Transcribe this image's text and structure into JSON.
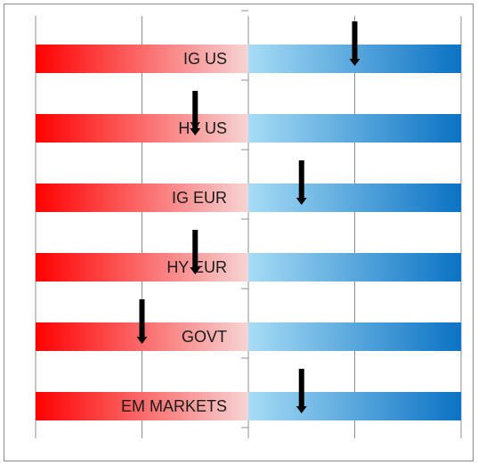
{
  "chart_data": {
    "type": "bar",
    "categories": [
      "IG US",
      "HY US",
      "IG EUR",
      "HY EUR",
      "GOVT",
      "EM MARKETS"
    ],
    "values": [
      0.5,
      -0.25,
      0.25,
      -0.25,
      -0.5,
      0.25
    ],
    "xlim": [
      -1,
      1
    ],
    "x_gridlines": [
      -1,
      -0.5,
      0.5,
      1
    ],
    "center_axis_ticks": true,
    "grid": true,
    "left_gradient": [
      "#ff0000",
      "#f7d4d4"
    ],
    "right_gradient": [
      "#a6dcf6",
      "#0b72c4"
    ],
    "arrow_color": "#000000",
    "grid_color": "#8c8c8c"
  }
}
